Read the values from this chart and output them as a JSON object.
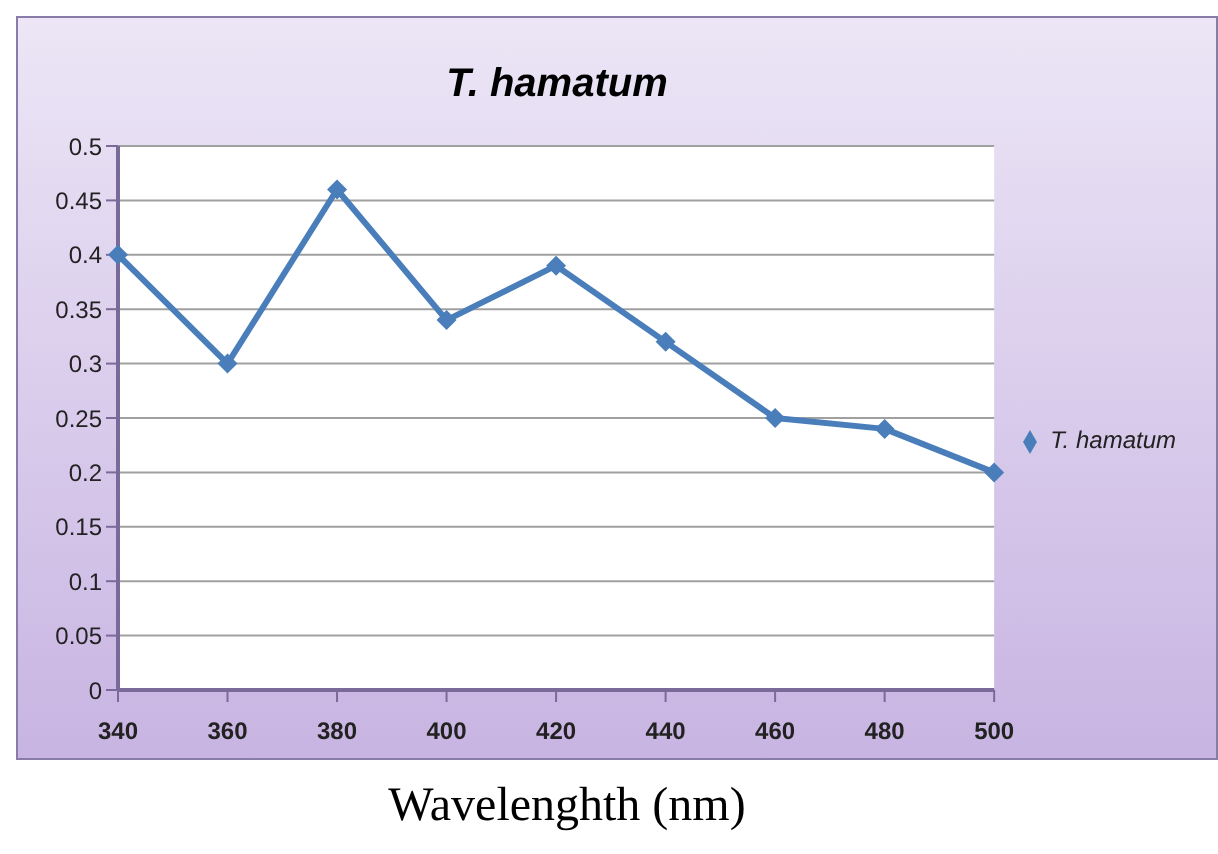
{
  "chart_data": {
    "type": "line",
    "title": "T. hamatum",
    "xlabel": "Wavelenghth (nm)",
    "categories": [
      "340",
      "360",
      "380",
      "400",
      "420",
      "440",
      "460",
      "480",
      "500"
    ],
    "series": [
      {
        "name": "T. hamatum",
        "color": "#4a7ebb",
        "values": [
          0.4,
          0.3,
          0.46,
          0.34,
          0.39,
          0.32,
          0.25,
          0.24,
          0.2
        ]
      }
    ],
    "ylim": [
      0,
      0.5
    ],
    "yticks": [
      0,
      0.05,
      0.1,
      0.15,
      0.2,
      0.25,
      0.3,
      0.35,
      0.4,
      0.45,
      0.5
    ],
    "grid": "y",
    "legend": "right",
    "marker": "diamond",
    "line_style": "solid"
  }
}
